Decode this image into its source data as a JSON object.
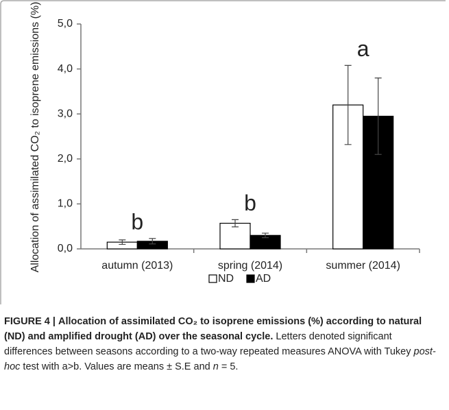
{
  "chart_data": {
    "type": "bar",
    "ylabel": "Allocation of assimilated CO₂ to isoprene emissions (%)",
    "categories": [
      "autumn (2013)",
      "spring (2014)",
      "summer (2014)"
    ],
    "series": [
      {
        "name": "ND",
        "color": "#ffffff",
        "values": [
          0.15,
          0.57,
          3.2
        ],
        "errors": [
          0.05,
          0.08,
          0.88
        ]
      },
      {
        "name": "AD",
        "color": "#000000",
        "values": [
          0.17,
          0.3,
          2.95
        ],
        "errors": [
          0.06,
          0.05,
          0.85
        ]
      }
    ],
    "annotations": [
      "b",
      "b",
      "a"
    ],
    "ylim": [
      0,
      5
    ],
    "yticks": [
      {
        "value": 0,
        "label": "0,0"
      },
      {
        "value": 1,
        "label": "1,0"
      },
      {
        "value": 2,
        "label": "2,0"
      },
      {
        "value": 3,
        "label": "3,0"
      },
      {
        "value": 4,
        "label": "4,0"
      },
      {
        "value": 5,
        "label": "5,0"
      }
    ],
    "grid": false
  },
  "caption": {
    "label": "FIGURE 4 |",
    "title": "Allocation of assimilated CO₂ to isoprene emissions (%) according to natural (ND) and amplified drought (AD) over the seasonal cycle.",
    "body1": "Letters denoted significant differences between seasons according to a two-way repeated measures ANOVA with Tukey",
    "body2": "post-hoc",
    "body3": "test with a>b. Values are means ± S.E and",
    "body4": "n",
    "body5": "= 5."
  }
}
